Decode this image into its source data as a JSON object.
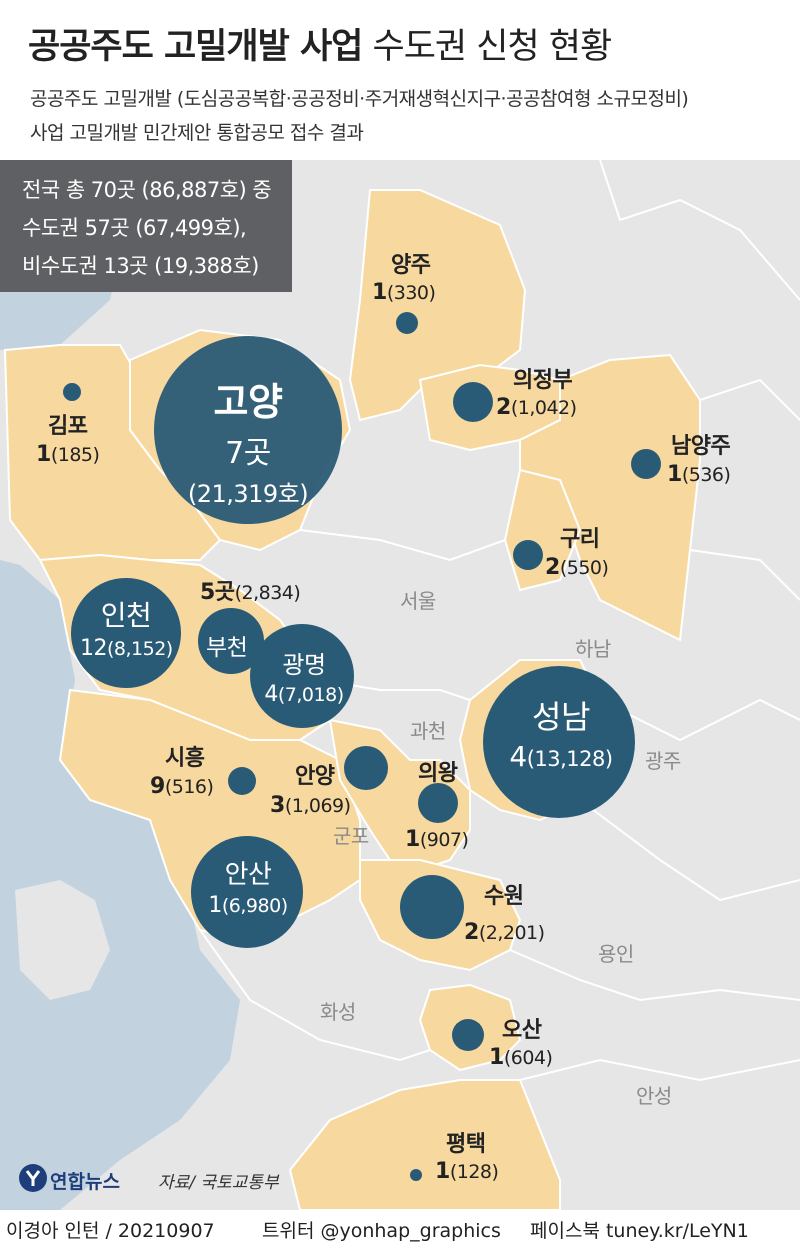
{
  "header": {
    "title_bold": "공공주도 고밀개발 사업",
    "title_normal": "수도권 신청 현황",
    "subtitle_line1": "공공주도 고밀개발 (도심공공복합·공공정비·주거재생혁신지구·공공참여형 소규모정비)",
    "subtitle_line2": "사업 고밀개발 민간제안 통합공모 접수 결과"
  },
  "summary": {
    "line1": "전국 총 70곳 (86,887호) 중",
    "line2": "수도권 57곳 (67,499호),",
    "line3": "비수도권 13곳 (19,388호)"
  },
  "regions": [
    {
      "name": "양주",
      "count": "1",
      "houses": "(330)"
    },
    {
      "name": "의정부",
      "count": "2",
      "houses": "(1,042)"
    },
    {
      "name": "김포",
      "count": "1",
      "houses": "(185)"
    },
    {
      "name": "고양",
      "count": "7곳",
      "houses": "(21,319호)"
    },
    {
      "name": "남양주",
      "count": "1",
      "houses": "(536)"
    },
    {
      "name": "구리",
      "count": "2",
      "houses": "(550)"
    },
    {
      "name": "부천",
      "count": "5곳",
      "houses": "(2,834)"
    },
    {
      "name": "인천",
      "count": "12",
      "houses": "(8,152)"
    },
    {
      "name": "광명",
      "count": "4",
      "houses": "(7,018)"
    },
    {
      "name": "성남",
      "count": "4",
      "houses": "(13,128)"
    },
    {
      "name": "시흥",
      "count": "9",
      "houses": "(516)"
    },
    {
      "name": "안양",
      "count": "3",
      "houses": "(1,069)"
    },
    {
      "name": "의왕",
      "count": "1",
      "houses": "(907)"
    },
    {
      "name": "안산",
      "count": "1",
      "houses": "(6,980)"
    },
    {
      "name": "수원",
      "count": "2",
      "houses": "(2,201)"
    },
    {
      "name": "오산",
      "count": "1",
      "houses": "(604)"
    },
    {
      "name": "평택",
      "count": "1",
      "houses": "(128)"
    }
  ],
  "place_labels": {
    "seoul": "서울",
    "hanam": "하남",
    "gwacheon": "과천",
    "gwangju": "광주",
    "gunpo": "군포",
    "yongin": "용인",
    "hwaseong": "화성",
    "anseong": "안성"
  },
  "logo": {
    "text": "연합뉴스",
    "icon": "yonhap-logo-icon"
  },
  "source": "자료/ 국토교통부",
  "footer": {
    "credit": "이경아 인턴 / 20210907",
    "twitter": "트위터 @yonhap_graphics",
    "facebook": "페이스북 tuney.kr/LeYN1"
  },
  "colors": {
    "land_highlight": "#f7d9a0",
    "land_other": "#e6e6e6",
    "sea": "#c2d2df",
    "bubble": "#2a5b76",
    "summary_box": "#5e6063"
  }
}
